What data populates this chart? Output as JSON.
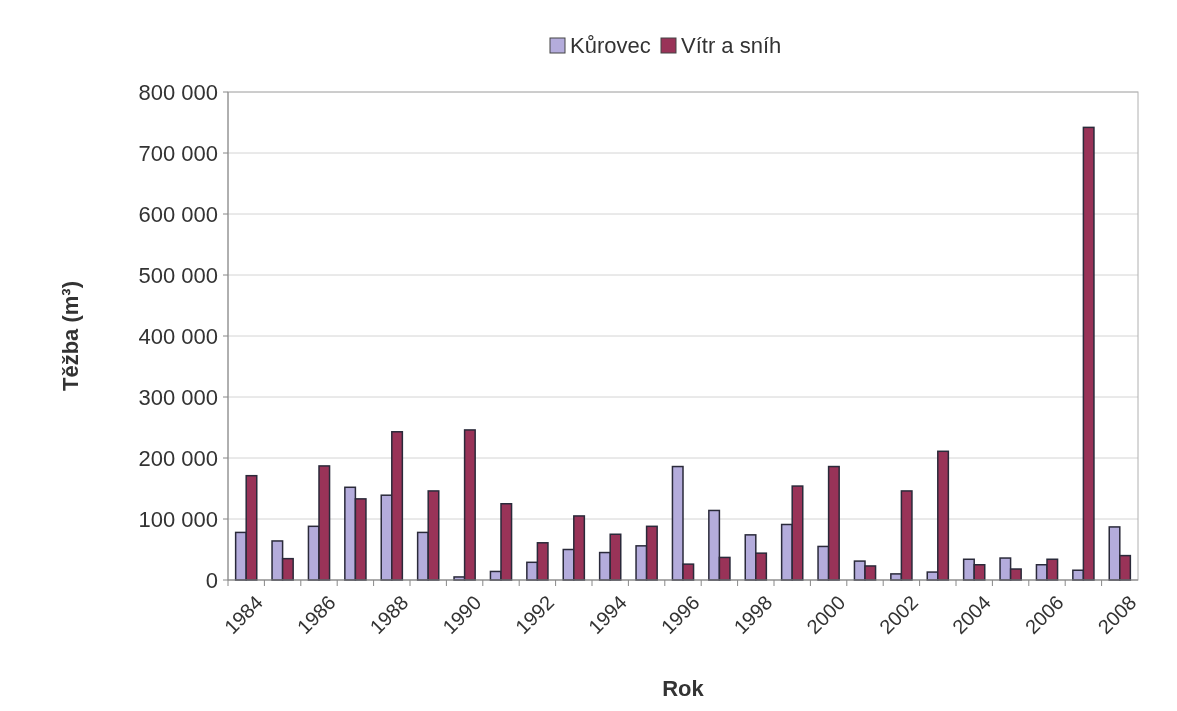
{
  "chart_data": {
    "type": "bar",
    "xlabel": "Rok",
    "ylabel": "Těžba (m³)",
    "categories": [
      "1984",
      null,
      "1986",
      null,
      "1988",
      null,
      "1990",
      null,
      "1992",
      null,
      "1994",
      null,
      "1996",
      null,
      "1998",
      null,
      "2000",
      null,
      "2002",
      null,
      "2004",
      null,
      "2006",
      null,
      "2008"
    ],
    "series": [
      {
        "name": "Kůrovec",
        "color": "#b4acdc",
        "values": [
          78000,
          64000,
          88000,
          152000,
          139000,
          78000,
          5000,
          14000,
          29000,
          50000,
          45000,
          56000,
          186000,
          114000,
          74000,
          91000,
          55000,
          31000,
          10000,
          13000,
          34000,
          36000,
          25000,
          16000,
          87000
        ]
      },
      {
        "name": "Vítr a sníh",
        "color": "#993358",
        "values": [
          171000,
          35000,
          187000,
          133000,
          243000,
          146000,
          246000,
          125000,
          61000,
          105000,
          75000,
          88000,
          26000,
          37000,
          44000,
          154000,
          186000,
          23000,
          146000,
          211000,
          25000,
          18000,
          34000,
          742000,
          40000
        ]
      }
    ],
    "ylim": [
      0,
      800000
    ],
    "yticks": [
      0,
      {
        "value": 100000,
        "label": "100 000"
      },
      {
        "value": 200000,
        "label": "200 000"
      },
      {
        "value": 300000,
        "label": "300 000"
      },
      {
        "value": 400000,
        "label": "400 000"
      },
      {
        "value": 500000,
        "label": "500 000"
      },
      {
        "value": 600000,
        "label": "600 000"
      },
      {
        "value": 700000,
        "label": "700 000"
      },
      {
        "value": 800000,
        "label": "800 000"
      }
    ],
    "grid": "y",
    "legend": "top"
  }
}
